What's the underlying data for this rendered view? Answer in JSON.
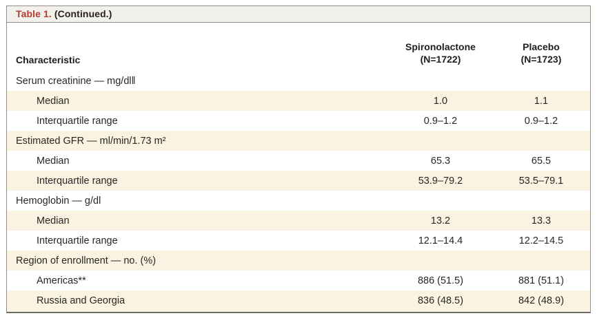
{
  "title": {
    "table_label": "Table 1.",
    "continued_label": "(Continued.)"
  },
  "columns": {
    "characteristic": "Characteristic",
    "spironolactone": {
      "name": "Spironolactone",
      "n": "(N=1722)"
    },
    "placebo": {
      "name": "Placebo",
      "n": "(N=1723)"
    }
  },
  "colors": {
    "accent_red": "#b23a31",
    "row_shade": "#faf3e2",
    "titlebar_bg": "#f2f0ea",
    "border_gray": "#8f8d88",
    "text": "#2a2623"
  },
  "table": {
    "rows": [
      {
        "label": "Serum creatinine — mg/dl‖",
        "spironolactone": "",
        "placebo": ""
      },
      {
        "label": "Median",
        "spironolactone": "1.0",
        "placebo": "1.1"
      },
      {
        "label": "Interquartile range",
        "spironolactone": "0.9–1.2",
        "placebo": "0.9–1.2"
      },
      {
        "label": "Estimated GFR — ml/min/1.73 m²",
        "spironolactone": "",
        "placebo": ""
      },
      {
        "label": "Median",
        "spironolactone": "65.3",
        "placebo": "65.5"
      },
      {
        "label": "Interquartile range",
        "spironolactone": "53.9–79.2",
        "placebo": "53.5–79.1"
      },
      {
        "label": "Hemoglobin — g/dl",
        "spironolactone": "",
        "placebo": ""
      },
      {
        "label": "Median",
        "spironolactone": "13.2",
        "placebo": "13.3"
      },
      {
        "label": "Interquartile range",
        "spironolactone": "12.1–14.4",
        "placebo": "12.2–14.5"
      },
      {
        "label": "Region of enrollment — no. (%)",
        "spironolactone": "",
        "placebo": ""
      },
      {
        "label": "Americas**",
        "spironolactone": "886 (51.5)",
        "placebo": "881 (51.1)"
      },
      {
        "label": "Russia and Georgia",
        "spironolactone": "836 (48.5)",
        "placebo": "842 (48.9)"
      }
    ]
  }
}
